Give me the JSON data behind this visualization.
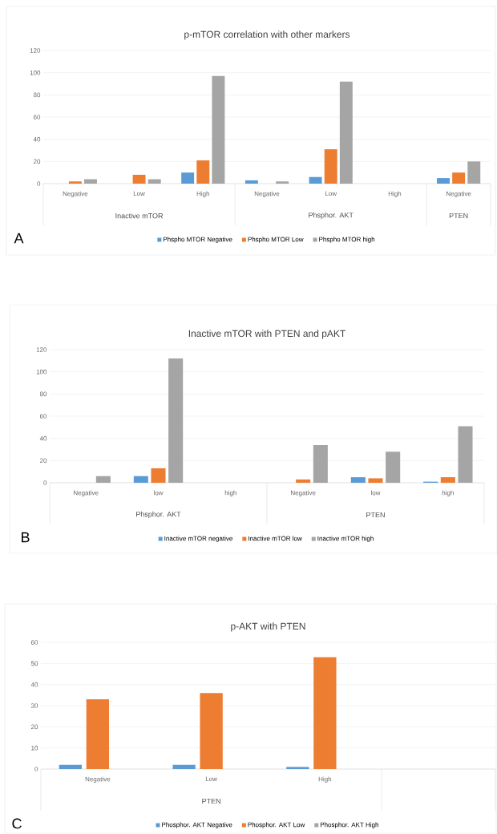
{
  "chart_data": [
    {
      "type": "bar",
      "title": "p-mTOR correlation with other markers",
      "categories": [
        "Negative",
        "Low",
        "High",
        "Negative",
        "Low",
        "High",
        "Negative"
      ],
      "series": [
        {
          "name": "Phspho MTOR Negative",
          "color": "#5b9bd5",
          "values": [
            null,
            null,
            10,
            3,
            6,
            null,
            5
          ]
        },
        {
          "name": "Phspho MTOR Low",
          "color": "#ed7d31",
          "values": [
            2,
            8,
            21,
            null,
            31,
            null,
            10
          ]
        },
        {
          "name": "Phspho MTOR high",
          "color": "#a5a5a5",
          "values": [
            4,
            4,
            97,
            2,
            92,
            null,
            20
          ]
        }
      ],
      "ylim": [
        0,
        120
      ],
      "yticks": [
        0,
        20,
        40,
        60,
        80,
        100,
        120
      ],
      "grid": "y",
      "legend": "bottom",
      "annotations": [
        "Inactive mTOR",
        "Phsphor. AKT",
        "PTEN",
        "A"
      ]
    },
    {
      "type": "bar",
      "title": "Inactive mTOR with PTEN and pAKT",
      "categories": [
        "Negative",
        "low",
        "high",
        "Negative",
        "low",
        "high"
      ],
      "series": [
        {
          "name": "Inactive mTOR negative",
          "color": "#5b9bd5",
          "values": [
            null,
            6,
            null,
            null,
            5,
            1
          ]
        },
        {
          "name": "Inactive mTOR low",
          "color": "#ed7d31",
          "values": [
            null,
            13,
            null,
            3,
            4,
            5
          ]
        },
        {
          "name": "Inactive mTOR high",
          "color": "#a5a5a5",
          "values": [
            6,
            112,
            null,
            34,
            28,
            51
          ]
        }
      ],
      "ylim": [
        0,
        120
      ],
      "yticks": [
        0,
        20,
        40,
        60,
        80,
        100,
        120
      ],
      "grid": "y",
      "legend": "bottom",
      "annotations": [
        "Phsphor. AKT",
        "PTEN",
        "B"
      ]
    },
    {
      "type": "bar",
      "title": "p-AKT with PTEN",
      "categories": [
        "Negative",
        "Low",
        "High",
        null
      ],
      "series": [
        {
          "name": "Phosphor. AKT Negative",
          "color": "#5b9bd5",
          "values": [
            2,
            2,
            1,
            null
          ]
        },
        {
          "name": "Phosphor. AKT Low",
          "color": "#ed7d31",
          "values": [
            33,
            36,
            53,
            null
          ]
        },
        {
          "name": "Phosphor. AKT High",
          "color": "#a5a5a5",
          "values": [
            null,
            null,
            null,
            null
          ]
        }
      ],
      "ylim": [
        0,
        60
      ],
      "yticks": [
        0,
        10,
        20,
        30,
        40,
        50,
        60
      ],
      "grid": "y",
      "legend": "bottom",
      "annotations": [
        "PTEN",
        "C"
      ]
    }
  ]
}
